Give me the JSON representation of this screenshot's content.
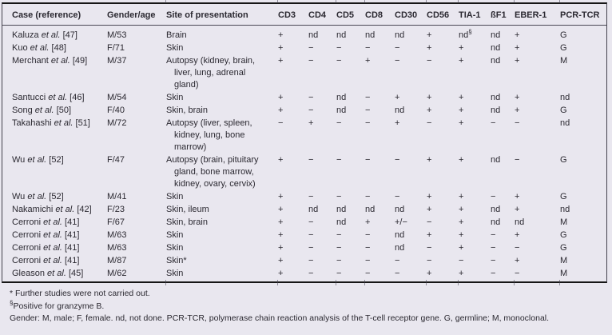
{
  "table": {
    "columns": [
      "Case (reference)",
      "Gender/age",
      "Site of presentation",
      "CD3",
      "CD4",
      "CD5",
      "CD8",
      "CD30",
      "CD56",
      "TIA-1",
      "ßF1",
      "EBER-1",
      "PCR-TCR"
    ],
    "rows": [
      {
        "case_author": "Kaluza",
        "case_etal": "et al.",
        "case_ref": "[47]",
        "gender_age": "M/53",
        "site_lines": [
          "Brain"
        ],
        "markers": [
          "+",
          "nd",
          "nd",
          "nd",
          "nd",
          "+",
          "nd§",
          "nd",
          "+",
          "G"
        ]
      },
      {
        "case_author": "Kuo",
        "case_etal": "et al.",
        "case_ref": "[48]",
        "gender_age": "F/71",
        "site_lines": [
          "Skin"
        ],
        "markers": [
          "+",
          "−",
          "−",
          "−",
          "−",
          "+",
          "+",
          "nd",
          "+",
          "G"
        ]
      },
      {
        "case_author": "Merchant",
        "case_etal": "et al.",
        "case_ref": "[49]",
        "gender_age": "M/37",
        "site_lines": [
          "Autopsy (kidney, brain,",
          "liver, lung, adrenal",
          "gland)"
        ],
        "markers": [
          "+",
          "−",
          "−",
          "+",
          "−",
          "−",
          "+",
          "nd",
          "+",
          "M"
        ]
      },
      {
        "case_author": "Santucci",
        "case_etal": "et al.",
        "case_ref": "[46]",
        "gender_age": "M/54",
        "site_lines": [
          "Skin"
        ],
        "markers": [
          "+",
          "−",
          "nd",
          "−",
          "+",
          "+",
          "+",
          "nd",
          "+",
          "nd"
        ]
      },
      {
        "case_author": "Song",
        "case_etal": "et al.",
        "case_ref": "[50]",
        "gender_age": "F/40",
        "site_lines": [
          "Skin, brain"
        ],
        "markers": [
          "+",
          "−",
          "nd",
          "−",
          "nd",
          "+",
          "+",
          "nd",
          "+",
          "G"
        ]
      },
      {
        "case_author": "Takahashi",
        "case_etal": "et al.",
        "case_ref": "[51]",
        "gender_age": "M/72",
        "site_lines": [
          "Autopsy (liver, spleen,",
          "kidney, lung, bone",
          "marrow)"
        ],
        "markers": [
          "−",
          "+",
          "−",
          "−",
          "+",
          "−",
          "+",
          "−",
          "−",
          "nd"
        ]
      },
      {
        "case_author": "Wu",
        "case_etal": "et al.",
        "case_ref": "[52]",
        "gender_age": "F/47",
        "site_lines": [
          "Autopsy (brain, pituitary",
          "gland, bone marrow,",
          "kidney, ovary, cervix)"
        ],
        "markers": [
          "+",
          "−",
          "−",
          "−",
          "−",
          "+",
          "+",
          "nd",
          "−",
          "G"
        ]
      },
      {
        "case_author": "Wu",
        "case_etal": "et al.",
        "case_ref": "[52]",
        "gender_age": "M/41",
        "site_lines": [
          "Skin"
        ],
        "markers": [
          "+",
          "−",
          "−",
          "−",
          "−",
          "+",
          "+",
          "−",
          "+",
          "G"
        ]
      },
      {
        "case_author": "Nakamichi",
        "case_etal": "et al.",
        "case_ref": "[42]",
        "gender_age": "F/23",
        "site_lines": [
          "Skin, ileum"
        ],
        "markers": [
          "+",
          "nd",
          "nd",
          "nd",
          "nd",
          "+",
          "+",
          "nd",
          "+",
          "nd"
        ]
      },
      {
        "case_author": "Cerroni",
        "case_etal": "et al.",
        "case_ref": "[41]",
        "gender_age": "F/67",
        "site_lines": [
          "Skin, brain"
        ],
        "markers": [
          "+",
          "−",
          "nd",
          "+",
          "+/−",
          "−",
          "+",
          "nd",
          "nd",
          "M"
        ]
      },
      {
        "case_author": "Cerroni",
        "case_etal": "et al.",
        "case_ref": "[41]",
        "gender_age": "M/63",
        "site_lines": [
          "Skin"
        ],
        "markers": [
          "+",
          "−",
          "−",
          "−",
          "nd",
          "+",
          "+",
          "−",
          "+",
          "G"
        ]
      },
      {
        "case_author": "Cerroni",
        "case_etal": "et al.",
        "case_ref": "[41]",
        "gender_age": "M/63",
        "site_lines": [
          "Skin"
        ],
        "markers": [
          "+",
          "−",
          "−",
          "−",
          "nd",
          "−",
          "+",
          "−",
          "−",
          "G"
        ]
      },
      {
        "case_author": "Cerroni",
        "case_etal": "et al.",
        "case_ref": "[41]",
        "gender_age": "M/87",
        "site_lines": [
          "Skin*"
        ],
        "markers": [
          "+",
          "−",
          "−",
          "−",
          "−",
          "−",
          "−",
          "−",
          "+",
          "M"
        ]
      },
      {
        "case_author": "Gleason",
        "case_etal": "et al.",
        "case_ref": "[45]",
        "gender_age": "M/62",
        "site_lines": [
          "Skin"
        ],
        "markers": [
          "+",
          "−",
          "−",
          "−",
          "−",
          "+",
          "+",
          "−",
          "−",
          "M"
        ]
      }
    ]
  },
  "footnotes": {
    "note1_symbol": "*",
    "note1_text": "Further studies were not carried out.",
    "note2_symbol": "§",
    "note2_text": "Positive for granzyme B.",
    "note3_text": "Gender: M, male; F, female. nd, not done. PCR-TCR, polymerase chain reaction analysis of the T-cell receptor gene. G, germline; M, monoclonal."
  },
  "colors": {
    "background": "#e9e7ef",
    "text": "#2b2931",
    "rule": "#161616"
  }
}
